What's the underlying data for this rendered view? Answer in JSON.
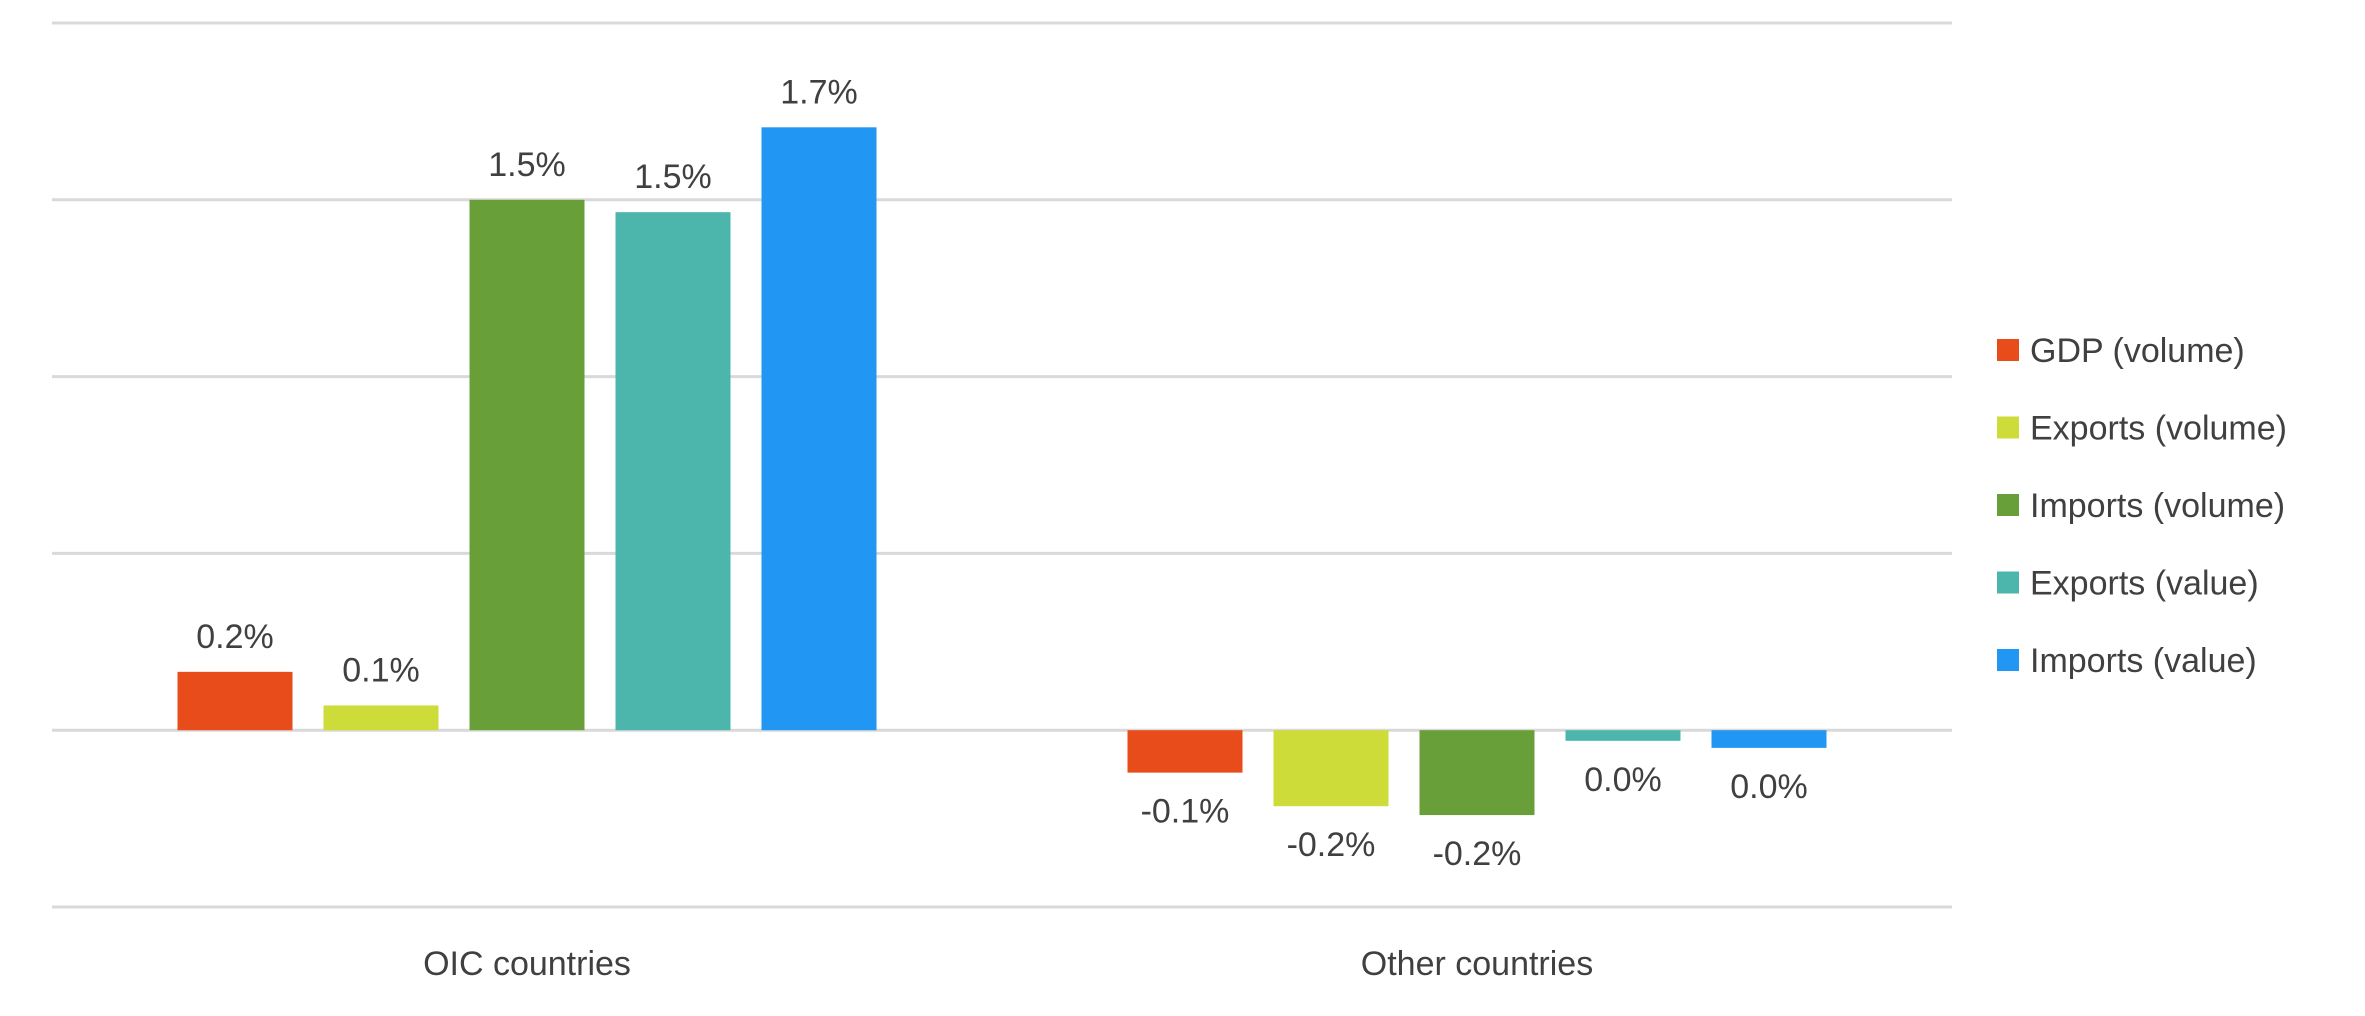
{
  "chart_data": {
    "type": "bar",
    "categories": [
      "OIC countries",
      "Other countries"
    ],
    "series": [
      {
        "name": "GDP (volume)",
        "color": "#E84C1B",
        "values": [
          0.165,
          -0.12
        ],
        "labels": [
          "0.2%",
          "-0.1%"
        ]
      },
      {
        "name": "Exports (volume)",
        "color": "#CDDC39",
        "values": [
          0.07,
          -0.215
        ],
        "labels": [
          "0.1%",
          "-0.2%"
        ]
      },
      {
        "name": "Imports (volume)",
        "color": "#689F38",
        "values": [
          1.5,
          -0.24
        ],
        "labels": [
          "1.5%",
          "-0.2%"
        ]
      },
      {
        "name": "Exports (value)",
        "color": "#4DB6AC",
        "values": [
          1.465,
          -0.03
        ],
        "labels": [
          "1.5%",
          "0.0%"
        ]
      },
      {
        "name": "Imports (value)",
        "color": "#2196F3",
        "values": [
          1.705,
          -0.05
        ],
        "labels": [
          "1.7%",
          "0.0%"
        ]
      }
    ],
    "ylim": [
      -0.5,
      2.0
    ],
    "gridlines": [
      -0.5,
      0.0,
      0.5,
      1.0,
      1.5,
      2.0
    ],
    "y_axis_labels_shown": false,
    "grid": true,
    "legend_position": "right"
  }
}
